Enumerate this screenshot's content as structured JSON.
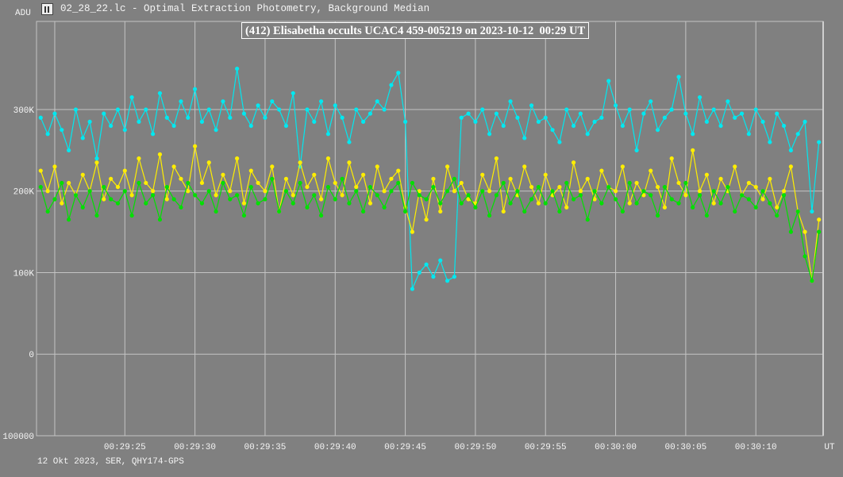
{
  "window": {
    "title": "02_28_22.lc - Optimal Extraction Photometry, Background Median",
    "icon": "lightcurve-app-icon"
  },
  "footer": "12 Okt 2023, SER, QHY174-GPS",
  "chart_data": {
    "type": "line",
    "title": "(412) Elisabetha occults UCAC4 459-005219 on 2023-10-12  00:29 UT",
    "ylabel": "ADU",
    "xlabel": "UT",
    "ylim": [
      -100000,
      408000
    ],
    "xlim": [
      "00:29:18.7",
      "00:30:14.8"
    ],
    "grid": true,
    "background": "#808080",
    "y_ticks": [
      {
        "value": 300000,
        "label": "300K"
      },
      {
        "value": 200000,
        "label": "200K"
      },
      {
        "value": 100000,
        "label": "100K"
      },
      {
        "value": 0,
        "label": "0"
      },
      {
        "value": -100000,
        "label": "100000"
      }
    ],
    "x_ticks": [
      "00:29:25",
      "00:29:30",
      "00:29:35",
      "00:29:40",
      "00:29:45",
      "00:29:50",
      "00:29:55",
      "00:30:00",
      "00:30:05",
      "00:30:10"
    ],
    "x": [
      "00:29:19.0",
      "00:29:19.5",
      "00:29:20.0",
      "00:29:20.5",
      "00:29:21.0",
      "00:29:21.5",
      "00:29:22.0",
      "00:29:22.5",
      "00:29:23.0",
      "00:29:23.5",
      "00:29:24.0",
      "00:29:24.5",
      "00:29:25.0",
      "00:29:25.5",
      "00:29:26.0",
      "00:29:26.5",
      "00:29:27.0",
      "00:29:27.5",
      "00:29:28.0",
      "00:29:28.5",
      "00:29:29.0",
      "00:29:29.5",
      "00:29:30.0",
      "00:29:30.5",
      "00:29:31.0",
      "00:29:31.5",
      "00:29:32.0",
      "00:29:32.5",
      "00:29:33.0",
      "00:29:33.5",
      "00:29:34.0",
      "00:29:34.5",
      "00:29:35.0",
      "00:29:35.5",
      "00:29:36.0",
      "00:29:36.5",
      "00:29:37.0",
      "00:29:37.5",
      "00:29:38.0",
      "00:29:38.5",
      "00:29:39.0",
      "00:29:39.5",
      "00:29:40.0",
      "00:29:40.5",
      "00:29:41.0",
      "00:29:41.5",
      "00:29:42.0",
      "00:29:42.5",
      "00:29:43.0",
      "00:29:43.5",
      "00:29:44.0",
      "00:29:44.5",
      "00:29:45.0",
      "00:29:45.5",
      "00:29:46.0",
      "00:29:46.5",
      "00:29:47.0",
      "00:29:47.5",
      "00:29:48.0",
      "00:29:48.5",
      "00:29:49.0",
      "00:29:49.5",
      "00:29:50.0",
      "00:29:50.5",
      "00:29:51.0",
      "00:29:51.5",
      "00:29:52.0",
      "00:29:52.5",
      "00:29:53.0",
      "00:29:53.5",
      "00:29:54.0",
      "00:29:54.5",
      "00:29:55.0",
      "00:29:55.5",
      "00:29:56.0",
      "00:29:56.5",
      "00:29:57.0",
      "00:29:57.5",
      "00:29:58.0",
      "00:29:58.5",
      "00:29:59.0",
      "00:29:59.5",
      "00:30:00.0",
      "00:30:00.5",
      "00:30:01.0",
      "00:30:01.5",
      "00:30:02.0",
      "00:30:02.5",
      "00:30:03.0",
      "00:30:03.5",
      "00:30:04.0",
      "00:30:04.5",
      "00:30:05.0",
      "00:30:05.5",
      "00:30:06.0",
      "00:30:06.5",
      "00:30:07.0",
      "00:30:07.5",
      "00:30:08.0",
      "00:30:08.5",
      "00:30:09.0",
      "00:30:09.5",
      "00:30:10.0",
      "00:30:10.5",
      "00:30:11.0",
      "00:30:11.5",
      "00:30:12.0",
      "00:30:12.5",
      "00:30:13.0",
      "00:30:13.5",
      "00:30:14.0",
      "00:30:14.5"
    ],
    "series": [
      {
        "color": "#00e8f0",
        "values": [
          290000,
          270000,
          295000,
          275000,
          250000,
          300000,
          265000,
          285000,
          240000,
          295000,
          280000,
          300000,
          275000,
          315000,
          285000,
          300000,
          270000,
          320000,
          290000,
          280000,
          310000,
          290000,
          325000,
          285000,
          300000,
          275000,
          310000,
          290000,
          350000,
          295000,
          280000,
          305000,
          290000,
          310000,
          300000,
          280000,
          320000,
          230000,
          300000,
          285000,
          310000,
          270000,
          305000,
          290000,
          260000,
          300000,
          285000,
          295000,
          310000,
          300000,
          330000,
          345000,
          285000,
          80000,
          100000,
          110000,
          95000,
          115000,
          90000,
          95000,
          290000,
          295000,
          285000,
          300000,
          270000,
          295000,
          280000,
          310000,
          290000,
          265000,
          305000,
          285000,
          290000,
          275000,
          260000,
          300000,
          280000,
          295000,
          270000,
          285000,
          290000,
          335000,
          305000,
          280000,
          300000,
          250000,
          295000,
          310000,
          275000,
          290000,
          300000,
          340000,
          295000,
          270000,
          315000,
          285000,
          300000,
          280000,
          310000,
          290000,
          295000,
          270000,
          300000,
          285000,
          260000,
          295000,
          280000,
          250000,
          270000,
          285000,
          175000,
          260000
        ]
      },
      {
        "color": "#ffee00",
        "values": [
          225000,
          200000,
          230000,
          185000,
          210000,
          195000,
          220000,
          200000,
          235000,
          190000,
          215000,
          205000,
          225000,
          195000,
          240000,
          210000,
          200000,
          245000,
          190000,
          230000,
          215000,
          200000,
          255000,
          210000,
          235000,
          195000,
          220000,
          200000,
          240000,
          185000,
          225000,
          210000,
          200000,
          230000,
          175000,
          215000,
          195000,
          235000,
          205000,
          220000,
          190000,
          240000,
          210000,
          195000,
          235000,
          205000,
          220000,
          185000,
          230000,
          200000,
          215000,
          225000,
          180000,
          150000,
          200000,
          165000,
          215000,
          175000,
          230000,
          200000,
          210000,
          190000,
          185000,
          220000,
          200000,
          240000,
          175000,
          215000,
          195000,
          230000,
          205000,
          185000,
          220000,
          195000,
          205000,
          180000,
          235000,
          200000,
          215000,
          190000,
          225000,
          205000,
          200000,
          230000,
          185000,
          210000,
          195000,
          225000,
          205000,
          180000,
          240000,
          210000,
          195000,
          250000,
          200000,
          220000,
          185000,
          215000,
          200000,
          230000,
          195000,
          210000,
          205000,
          190000,
          215000,
          180000,
          200000,
          230000,
          175000,
          150000,
          90000,
          165000
        ]
      },
      {
        "color": "#00e000",
        "values": [
          205000,
          175000,
          190000,
          210000,
          165000,
          195000,
          180000,
          200000,
          170000,
          205000,
          190000,
          185000,
          200000,
          170000,
          210000,
          185000,
          195000,
          165000,
          205000,
          190000,
          180000,
          210000,
          195000,
          185000,
          200000,
          175000,
          210000,
          190000,
          195000,
          170000,
          205000,
          185000,
          190000,
          215000,
          175000,
          200000,
          185000,
          210000,
          180000,
          195000,
          170000,
          205000,
          190000,
          215000,
          185000,
          200000,
          175000,
          205000,
          195000,
          180000,
          200000,
          210000,
          175000,
          210000,
          195000,
          190000,
          205000,
          185000,
          200000,
          215000,
          185000,
          195000,
          180000,
          200000,
          170000,
          195000,
          210000,
          185000,
          200000,
          175000,
          190000,
          205000,
          185000,
          200000,
          175000,
          210000,
          190000,
          195000,
          165000,
          200000,
          185000,
          205000,
          190000,
          175000,
          210000,
          185000,
          200000,
          195000,
          170000,
          205000,
          190000,
          185000,
          210000,
          180000,
          195000,
          170000,
          200000,
          185000,
          205000,
          175000,
          195000,
          190000,
          180000,
          200000,
          185000,
          170000,
          195000,
          150000,
          175000,
          120000,
          90000,
          150000
        ]
      }
    ]
  }
}
